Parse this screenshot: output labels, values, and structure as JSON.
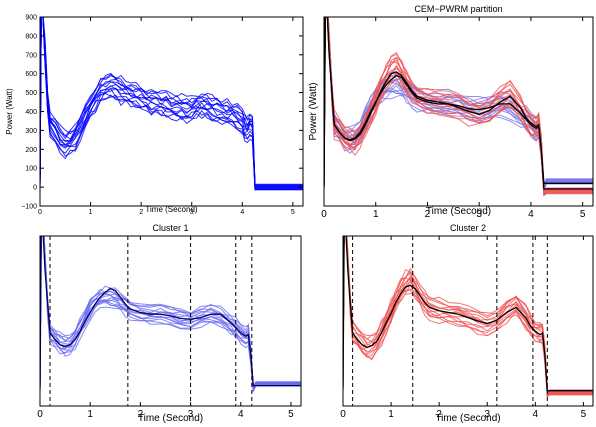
{
  "chart_data": [
    {
      "type": "line",
      "title": "",
      "xlabel": "Time (Second)",
      "ylabel": "Power (Watt)",
      "xlim": [
        0,
        5.2
      ],
      "ylim": [
        -100,
        900
      ],
      "xticks": [
        "0",
        "1",
        "2",
        "3",
        "4",
        "5"
      ],
      "yticks": [
        "−100",
        "0",
        "100",
        "200",
        "300",
        "400",
        "500",
        "600",
        "700",
        "800",
        "900"
      ],
      "series": [
        {
          "color": "#0000ff",
          "band_width": 120,
          "x": [
            0,
            0.03,
            0.06,
            0.1,
            0.15,
            0.2,
            0.3,
            0.4,
            0.5,
            0.6,
            0.7,
            0.8,
            0.9,
            1.0,
            1.1,
            1.2,
            1.3,
            1.4,
            1.5,
            1.6,
            1.7,
            1.8,
            1.9,
            2.0,
            2.1,
            2.2,
            2.3,
            2.4,
            2.5,
            2.6,
            2.7,
            2.8,
            2.9,
            3.0,
            3.1,
            3.2,
            3.3,
            3.4,
            3.5,
            3.6,
            3.7,
            3.8,
            3.9,
            4.0,
            4.05,
            4.1,
            4.15,
            4.2,
            4.22,
            4.25,
            4.3,
            4.5,
            5.0,
            5.2
          ],
          "y": [
            0,
            1100,
            900,
            700,
            450,
            330,
            300,
            250,
            230,
            240,
            270,
            320,
            380,
            430,
            470,
            510,
            530,
            540,
            530,
            510,
            500,
            490,
            480,
            470,
            460,
            450,
            450,
            440,
            440,
            430,
            420,
            415,
            410,
            420,
            430,
            435,
            430,
            420,
            410,
            400,
            390,
            385,
            370,
            350,
            320,
            310,
            330,
            320,
            200,
            0,
            0,
            0,
            0,
            0
          ]
        }
      ]
    },
    {
      "type": "line",
      "title": "CEM−PWRM partition",
      "xlabel": "Time (Second)",
      "ylabel": "Power (Watt)",
      "xlim": [
        0,
        5.2
      ],
      "ylim": [
        -100,
        900
      ],
      "xticks": [
        "0",
        "1",
        "2",
        "3",
        "4",
        "5"
      ],
      "yticks": [],
      "series": [
        {
          "color": "#7777ee",
          "band_width": 110,
          "x": [
            0,
            0.03,
            0.08,
            0.15,
            0.2,
            0.3,
            0.4,
            0.5,
            0.6,
            0.7,
            0.8,
            0.9,
            1.0,
            1.1,
            1.2,
            1.3,
            1.4,
            1.5,
            1.6,
            1.7,
            1.8,
            2.0,
            2.2,
            2.4,
            2.6,
            2.8,
            3.0,
            3.2,
            3.4,
            3.6,
            3.8,
            3.9,
            4.0,
            4.1,
            4.15,
            4.2,
            4.25,
            4.3,
            5.2
          ],
          "y": [
            0,
            1150,
            900,
            500,
            330,
            300,
            270,
            250,
            260,
            300,
            360,
            420,
            470,
            510,
            530,
            540,
            540,
            530,
            510,
            490,
            470,
            450,
            440,
            440,
            430,
            415,
            410,
            420,
            440,
            420,
            380,
            360,
            330,
            310,
            320,
            200,
            0,
            30,
            30
          ]
        },
        {
          "color": "#ee5555",
          "band_width": 120,
          "x": [
            0,
            0.03,
            0.08,
            0.15,
            0.2,
            0.3,
            0.4,
            0.5,
            0.6,
            0.7,
            0.8,
            0.9,
            1.0,
            1.1,
            1.2,
            1.3,
            1.4,
            1.5,
            1.6,
            1.7,
            1.8,
            2.0,
            2.2,
            2.4,
            2.6,
            2.8,
            3.0,
            3.2,
            3.4,
            3.6,
            3.8,
            3.9,
            4.0,
            4.1,
            4.15,
            4.2,
            4.25,
            4.3,
            5.2
          ],
          "y": [
            0,
            1150,
            900,
            500,
            330,
            300,
            260,
            240,
            250,
            280,
            330,
            390,
            450,
            520,
            580,
            620,
            640,
            600,
            550,
            510,
            480,
            460,
            450,
            440,
            420,
            400,
            380,
            400,
            460,
            500,
            420,
            370,
            340,
            320,
            330,
            200,
            -30,
            -20,
            -20
          ]
        }
      ],
      "fits": [
        {
          "color": "#000000",
          "x": [
            0,
            0.03,
            0.1,
            0.2,
            0.3,
            0.4,
            0.5,
            0.6,
            0.7,
            0.8,
            0.9,
            1.0,
            1.1,
            1.2,
            1.3,
            1.4,
            1.5,
            1.6,
            1.7,
            1.8,
            2.0,
            2.2,
            2.4,
            2.6,
            2.8,
            3.0,
            3.2,
            3.4,
            3.6,
            3.8,
            3.9,
            4.0,
            4.1,
            4.15,
            4.2,
            4.25,
            4.3,
            5.2
          ],
          "y": [
            0,
            1100,
            700,
            330,
            290,
            260,
            250,
            260,
            290,
            340,
            400,
            450,
            500,
            540,
            570,
            590,
            580,
            540,
            500,
            470,
            450,
            440,
            440,
            430,
            415,
            410,
            420,
            440,
            440,
            390,
            360,
            330,
            310,
            320,
            200,
            20,
            20,
            20
          ]
        },
        {
          "color": "#000000",
          "x": [
            0,
            0.03,
            0.1,
            0.2,
            0.3,
            0.4,
            0.5,
            0.6,
            0.7,
            0.8,
            0.9,
            1.0,
            1.1,
            1.2,
            1.3,
            1.4,
            1.5,
            1.6,
            1.7,
            1.8,
            2.0,
            2.2,
            2.4,
            2.6,
            2.8,
            3.0,
            3.2,
            3.4,
            3.6,
            3.8,
            3.9,
            4.0,
            4.1,
            4.15,
            4.2,
            4.25,
            4.3,
            5.2
          ],
          "y": [
            0,
            1100,
            700,
            330,
            290,
            260,
            245,
            255,
            280,
            330,
            390,
            445,
            510,
            560,
            600,
            610,
            590,
            550,
            510,
            480,
            460,
            450,
            440,
            420,
            400,
            385,
            405,
            450,
            480,
            420,
            370,
            340,
            320,
            330,
            200,
            -10,
            -10,
            -10
          ]
        }
      ]
    },
    {
      "type": "line",
      "title": "Cluster 1",
      "xlabel": "Time (Second)",
      "ylabel": "",
      "xlim": [
        0,
        5.2
      ],
      "ylim": [
        -100,
        900
      ],
      "xticks": [
        "0",
        "1",
        "2",
        "3",
        "4",
        "5"
      ],
      "yticks": [],
      "vlines": [
        0.2,
        1.75,
        3.0,
        3.9,
        4.22
      ],
      "series": [
        {
          "color": "#6a6af0",
          "band_width": 100,
          "x": [
            0,
            0.03,
            0.08,
            0.15,
            0.2,
            0.3,
            0.4,
            0.5,
            0.6,
            0.7,
            0.8,
            0.9,
            1.0,
            1.1,
            1.2,
            1.3,
            1.4,
            1.5,
            1.6,
            1.7,
            1.8,
            2.0,
            2.2,
            2.4,
            2.6,
            2.8,
            3.0,
            3.2,
            3.4,
            3.6,
            3.8,
            3.9,
            4.0,
            4.1,
            4.15,
            4.2,
            4.25,
            4.3,
            5.2
          ],
          "y": [
            0,
            1150,
            900,
            500,
            330,
            300,
            270,
            250,
            260,
            300,
            360,
            420,
            470,
            510,
            530,
            540,
            540,
            530,
            510,
            490,
            470,
            450,
            440,
            440,
            430,
            415,
            410,
            420,
            440,
            420,
            380,
            360,
            330,
            310,
            320,
            200,
            0,
            30,
            30
          ]
        }
      ],
      "fits": [
        {
          "color": "#000066",
          "x": [
            0,
            0.03,
            0.1,
            0.2,
            0.3,
            0.4,
            0.5,
            0.6,
            0.7,
            0.8,
            0.9,
            1.0,
            1.1,
            1.2,
            1.3,
            1.4,
            1.5,
            1.6,
            1.7,
            1.8,
            2.0,
            2.2,
            2.4,
            2.6,
            2.8,
            3.0,
            3.2,
            3.4,
            3.6,
            3.8,
            3.9,
            4.0,
            4.1,
            4.15,
            4.2,
            4.25,
            4.3,
            5.2
          ],
          "y": [
            0,
            1100,
            700,
            330,
            290,
            260,
            250,
            260,
            290,
            340,
            400,
            450,
            500,
            540,
            570,
            590,
            580,
            540,
            500,
            470,
            450,
            440,
            440,
            430,
            415,
            410,
            420,
            440,
            440,
            390,
            360,
            330,
            310,
            320,
            200,
            20,
            20,
            20
          ]
        }
      ]
    },
    {
      "type": "line",
      "title": "Cluster 2",
      "xlabel": "Time (Second)",
      "ylabel": "",
      "xlim": [
        0,
        5.2
      ],
      "ylim": [
        -100,
        900
      ],
      "xticks": [
        "0",
        "1",
        "2",
        "3",
        "4",
        "5"
      ],
      "yticks": [],
      "vlines": [
        0.2,
        1.45,
        3.2,
        3.95,
        4.25
      ],
      "series": [
        {
          "color": "#ee5555",
          "band_width": 120,
          "x": [
            0,
            0.03,
            0.08,
            0.15,
            0.2,
            0.3,
            0.4,
            0.5,
            0.6,
            0.7,
            0.8,
            0.9,
            1.0,
            1.1,
            1.2,
            1.3,
            1.4,
            1.5,
            1.6,
            1.7,
            1.8,
            2.0,
            2.2,
            2.4,
            2.6,
            2.8,
            3.0,
            3.2,
            3.4,
            3.6,
            3.8,
            3.9,
            4.0,
            4.1,
            4.15,
            4.2,
            4.25,
            4.3,
            5.2
          ],
          "y": [
            0,
            1150,
            900,
            500,
            330,
            300,
            260,
            240,
            250,
            280,
            330,
            390,
            450,
            520,
            580,
            620,
            640,
            600,
            550,
            510,
            480,
            460,
            450,
            440,
            420,
            400,
            380,
            400,
            460,
            500,
            420,
            370,
            340,
            320,
            330,
            200,
            -30,
            -20,
            -20
          ]
        }
      ],
      "fits": [
        {
          "color": "#000000",
          "x": [
            0,
            0.03,
            0.1,
            0.2,
            0.3,
            0.4,
            0.5,
            0.6,
            0.7,
            0.8,
            0.9,
            1.0,
            1.1,
            1.2,
            1.3,
            1.4,
            1.5,
            1.6,
            1.7,
            1.8,
            2.0,
            2.2,
            2.4,
            2.6,
            2.8,
            3.0,
            3.2,
            3.4,
            3.6,
            3.8,
            3.9,
            4.0,
            4.1,
            4.15,
            4.2,
            4.25,
            4.3,
            5.2
          ],
          "y": [
            0,
            1100,
            700,
            330,
            290,
            260,
            245,
            255,
            280,
            330,
            390,
            445,
            510,
            560,
            600,
            610,
            590,
            550,
            510,
            480,
            460,
            450,
            440,
            420,
            400,
            385,
            405,
            450,
            480,
            420,
            370,
            340,
            320,
            330,
            200,
            -10,
            -10,
            -10
          ]
        }
      ]
    }
  ]
}
